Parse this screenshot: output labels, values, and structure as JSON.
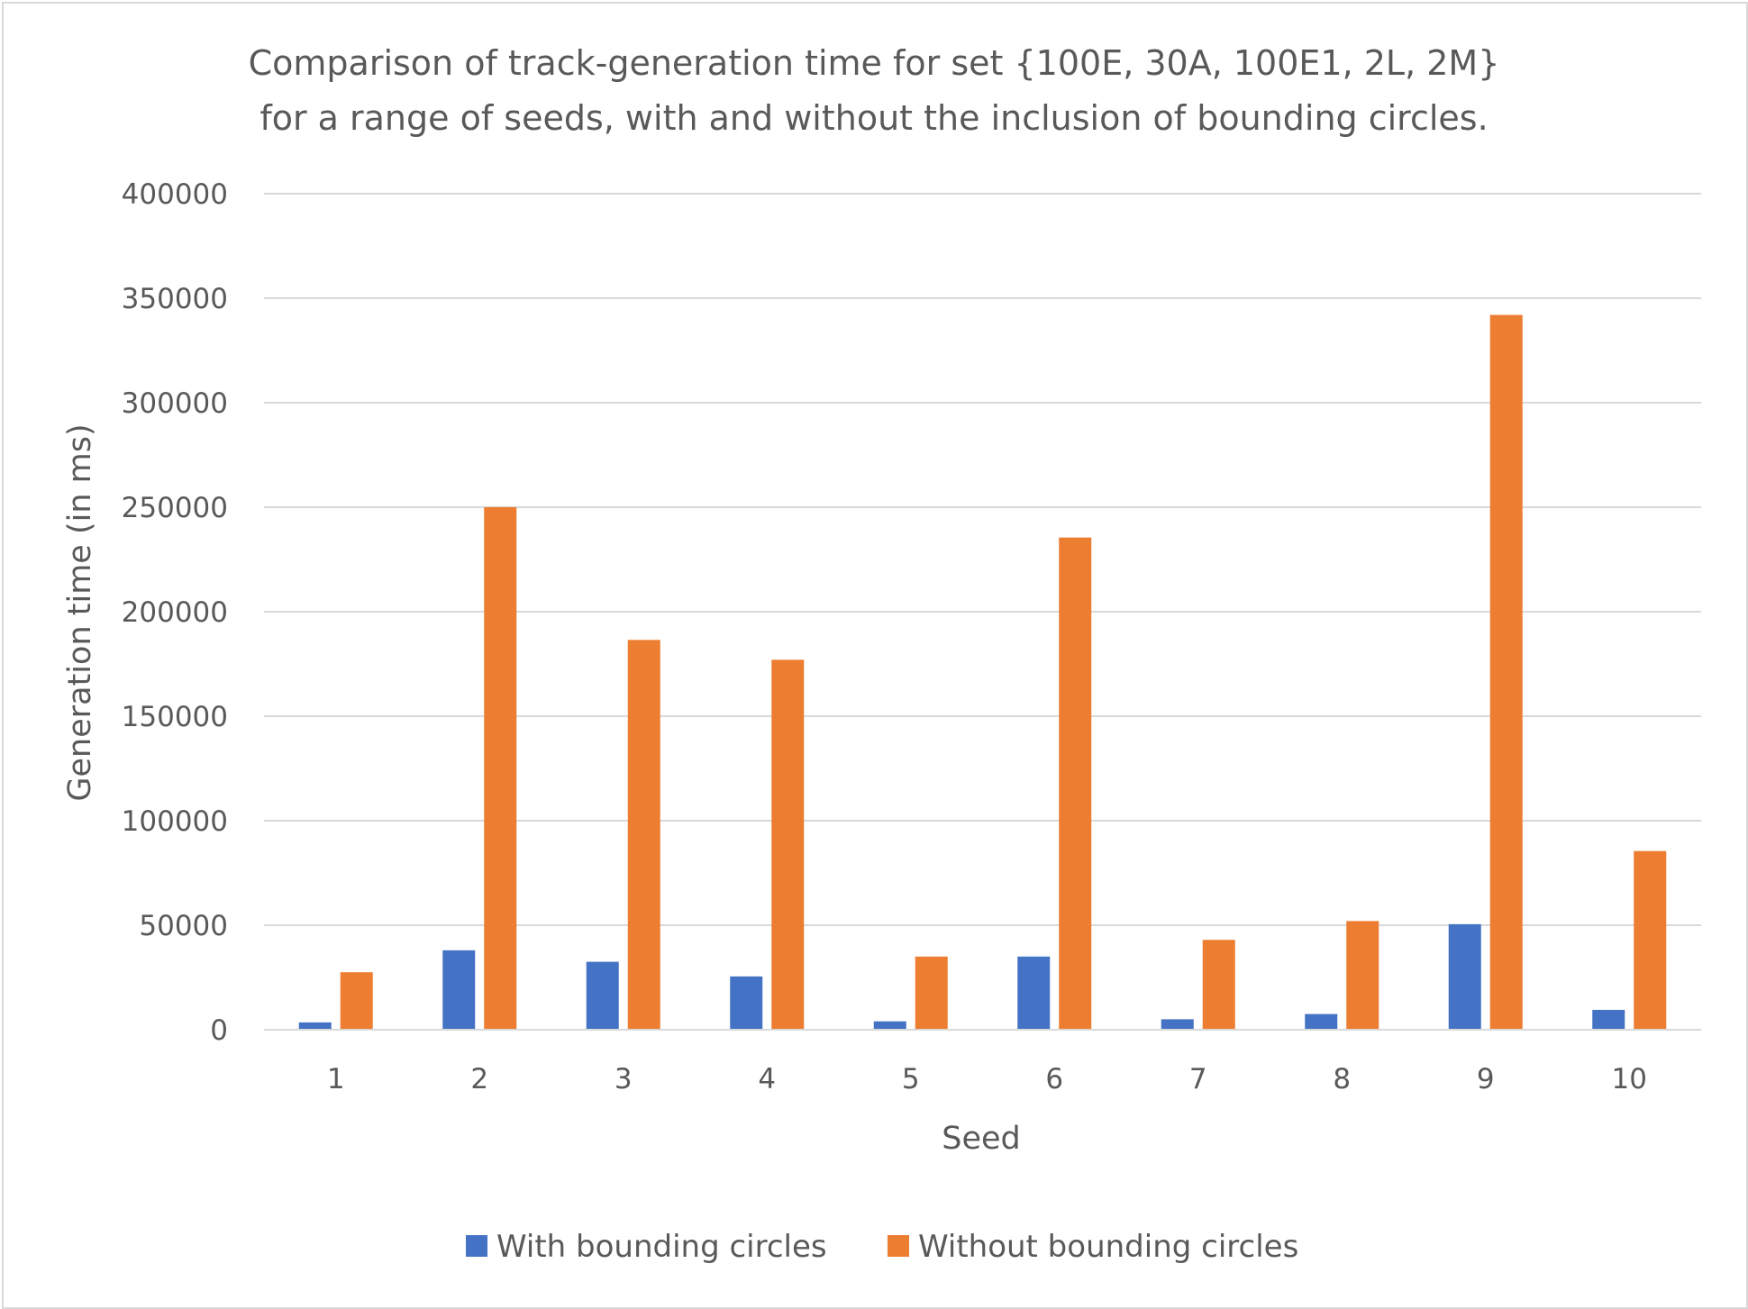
{
  "chart_data": {
    "type": "bar",
    "title_lines": [
      "Comparison of track-generation time for set {100E, 30A, 100E1, 2L, 2M}",
      "for a range of seeds, with and without the inclusion of bounding circles."
    ],
    "xlabel": "Seed",
    "ylabel": "Generation time (in ms)",
    "categories": [
      "1",
      "2",
      "3",
      "4",
      "5",
      "6",
      "7",
      "8",
      "9",
      "10"
    ],
    "ylim": [
      0,
      400000
    ],
    "yticks": [
      "0",
      "50000",
      "100000",
      "150000",
      "200000",
      "250000",
      "300000",
      "350000",
      "400000"
    ],
    "grid": true,
    "legend_position": "bottom",
    "series": [
      {
        "name": "With bounding circles",
        "color": "#4472c4",
        "values": [
          3500,
          38000,
          32500,
          25500,
          4000,
          35000,
          5000,
          7500,
          50500,
          9500
        ]
      },
      {
        "name": "Without bounding circles",
        "color": "#ed7d31",
        "values": [
          27500,
          250000,
          186500,
          177000,
          35000,
          235500,
          43000,
          52000,
          342000,
          85500
        ]
      }
    ]
  }
}
